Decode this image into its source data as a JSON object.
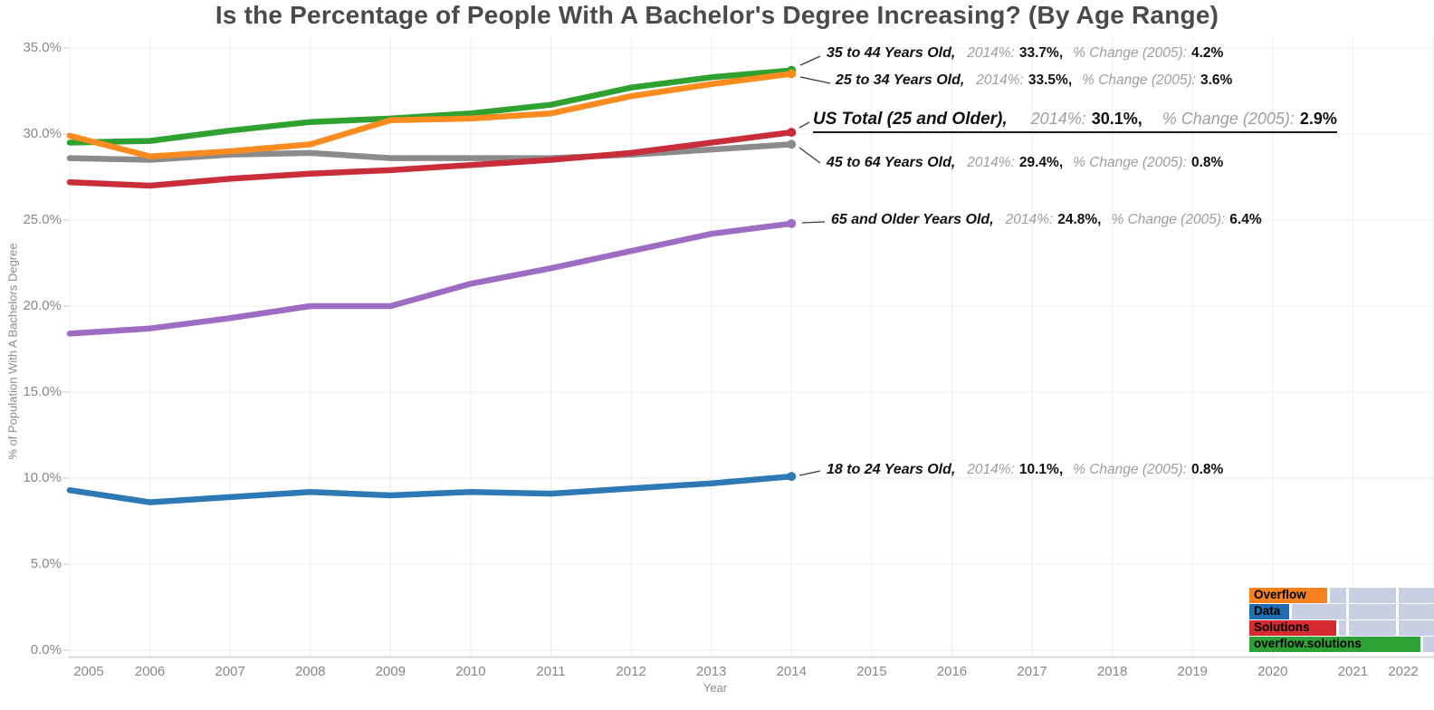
{
  "title": "Is the Percentage of People With A Bachelor's Degree Increasing? (By Age Range)",
  "axes": {
    "x_label": "Year",
    "y_label": "% of Population With A Bachelors Degree",
    "x_ticks": [
      "2005",
      "2006",
      "2007",
      "2008",
      "2009",
      "2010",
      "2011",
      "2012",
      "2013",
      "2014",
      "2015",
      "2016",
      "2017",
      "2018",
      "2019",
      "2020",
      "2021",
      "2022"
    ],
    "y_ticks": [
      "0.0%",
      "5.0%",
      "10.0%",
      "15.0%",
      "20.0%",
      "25.0%",
      "30.0%",
      "35.0%"
    ]
  },
  "annotations": {
    "pct_label": "2014%:",
    "change_label": "% Change (2005):"
  },
  "chart_data": {
    "type": "line",
    "x": [
      2005,
      2006,
      2007,
      2008,
      2009,
      2010,
      2011,
      2012,
      2013,
      2014
    ],
    "xlim": [
      2005,
      2022
    ],
    "ylim": [
      0,
      35
    ],
    "grid": true,
    "series": [
      {
        "name": "35 to 44 Years Old",
        "color": "#2fa12f",
        "values": [
          29.5,
          29.6,
          30.2,
          30.7,
          30.9,
          31.2,
          31.7,
          32.7,
          33.3,
          33.7
        ],
        "annotation": {
          "label": "35 to 44 Years Old,",
          "pct_2014": "33.7%,",
          "change_2005": "4.2%"
        }
      },
      {
        "name": "25 to 34 Years Old",
        "color": "#fa8b1e",
        "values": [
          29.9,
          28.7,
          29.0,
          29.4,
          30.8,
          30.9,
          31.2,
          32.2,
          32.9,
          33.5
        ],
        "annotation": {
          "label": "25 to 34 Years Old,",
          "pct_2014": "33.5%,",
          "change_2005": "3.6%"
        }
      },
      {
        "name": "US Total (25 and Older)",
        "color": "#c92d39",
        "values": [
          27.2,
          27.0,
          27.4,
          27.7,
          27.9,
          28.2,
          28.5,
          28.9,
          29.5,
          30.1
        ],
        "annotation": {
          "label": "US Total (25 and Older),",
          "pct_2014": "30.1%,",
          "change_2005": "2.9%"
        }
      },
      {
        "name": "45 to 64 Years Old",
        "color": "#8b8b8b",
        "values": [
          28.6,
          28.5,
          28.8,
          28.9,
          28.6,
          28.6,
          28.6,
          28.8,
          29.1,
          29.4
        ],
        "annotation": {
          "label": "45 to 64 Years Old,",
          "pct_2014": "29.4%,",
          "change_2005": "0.8%"
        }
      },
      {
        "name": "65 and Older Years Old",
        "color": "#9d6cc3",
        "values": [
          18.4,
          18.7,
          19.3,
          20.0,
          20.0,
          21.3,
          22.2,
          23.2,
          24.2,
          24.8
        ],
        "annotation": {
          "label": "65 and Older Years Old,",
          "pct_2014": "24.8%,",
          "change_2005": "6.4%"
        }
      },
      {
        "name": "18 to 24 Years Old",
        "color": "#2d79b5",
        "values": [
          9.3,
          8.6,
          8.9,
          9.2,
          9.0,
          9.2,
          9.1,
          9.4,
          9.7,
          10.1
        ],
        "annotation": {
          "label": "18 to 24 Years Old,",
          "pct_2014": "10.1%,",
          "change_2005": "0.8%"
        }
      }
    ]
  },
  "logo": {
    "cell_color": "#c9cfe3",
    "rows": [
      {
        "label": "Overflow",
        "color": "#f5821f"
      },
      {
        "label": "Data",
        "color": "#1f6eb3"
      },
      {
        "label": "Solutions",
        "color": "#d62a31"
      },
      {
        "label": "overflow.solutions",
        "color": "#2da135"
      }
    ]
  }
}
